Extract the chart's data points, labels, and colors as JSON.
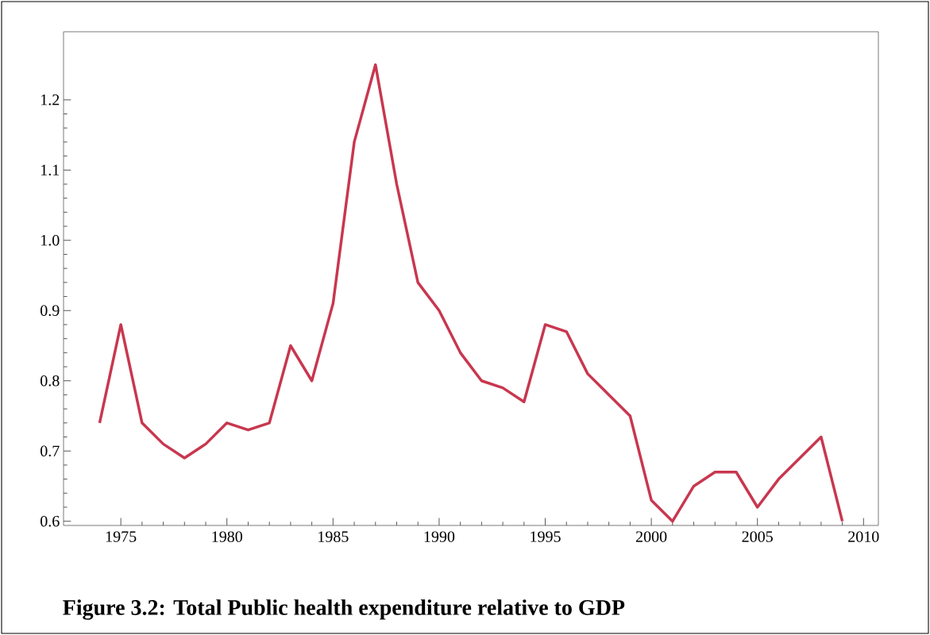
{
  "chart_data": {
    "type": "line",
    "title": "Figure 3.2: Total Public health expenditure relative to GDP",
    "x": [
      1974,
      1975,
      1976,
      1977,
      1978,
      1979,
      1980,
      1981,
      1982,
      1983,
      1984,
      1985,
      1986,
      1987,
      1988,
      1989,
      1990,
      1991,
      1992,
      1993,
      1994,
      1995,
      1996,
      1997,
      1998,
      1999,
      2000,
      2001,
      2002,
      2003,
      2004,
      2005,
      2006,
      2007,
      2008,
      2009
    ],
    "series": [
      {
        "color": "#c8374f",
        "values": [
          0.74,
          0.88,
          0.74,
          0.71,
          0.69,
          0.71,
          0.74,
          0.73,
          0.74,
          0.85,
          0.8,
          0.91,
          1.14,
          1.25,
          1.08,
          0.94,
          0.9,
          0.84,
          0.8,
          0.79,
          0.77,
          0.88,
          0.87,
          0.81,
          0.78,
          0.75,
          0.63,
          0.6,
          0.65,
          0.67,
          0.67,
          0.62,
          0.66,
          0.69,
          0.72,
          0.6
        ]
      }
    ],
    "xlim": [
      1972.3,
      2010.7
    ],
    "ylim": [
      0.594,
      1.297
    ],
    "xticks": [
      1975,
      1980,
      1985,
      1990,
      1995,
      2000,
      2005,
      2010
    ],
    "yticks": [
      0.6,
      0.7,
      0.8,
      0.9,
      {
        "value": 1.0,
        "label": "1.0"
      },
      1.1,
      1.2
    ],
    "marker": "none",
    "line_style": "solid"
  }
}
